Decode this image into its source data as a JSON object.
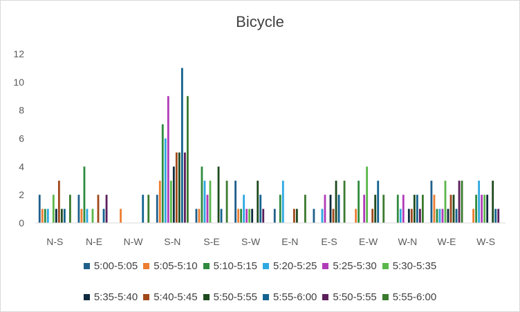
{
  "chart_data": {
    "type": "bar",
    "title": "Bicycle",
    "xlabel": "",
    "ylabel": "",
    "ylim": [
      0,
      12
    ],
    "yticks": [
      0,
      2,
      4,
      6,
      8,
      10,
      12
    ],
    "grid": false,
    "legend_position": "bottom",
    "categories": [
      "N-S",
      "N-E",
      "N-W",
      "S-N",
      "S-E",
      "S-W",
      "E-N",
      "E-S",
      "E-W",
      "W-N",
      "W-E",
      "W-S"
    ],
    "series": [
      {
        "name": "5:00-5:05",
        "color": "#1f5f8b",
        "values": [
          2,
          2,
          0,
          2,
          1,
          3,
          1,
          1,
          0,
          0,
          3,
          0
        ]
      },
      {
        "name": "5:05-5:10",
        "color": "#ed7d31",
        "values": [
          1,
          1,
          1,
          3,
          1,
          1,
          0,
          0,
          1,
          0,
          2,
          1
        ]
      },
      {
        "name": "5:10-5:15",
        "color": "#2e8b3e",
        "values": [
          1,
          4,
          0,
          7,
          4,
          1,
          2,
          0,
          3,
          2,
          1,
          2
        ]
      },
      {
        "name": "5:20-5:25",
        "color": "#2ea8e0",
        "values": [
          1,
          1,
          0,
          6,
          3,
          2,
          3,
          1,
          0,
          1,
          1,
          3
        ]
      },
      {
        "name": "5:25-5:30",
        "color": "#b03bb8",
        "values": [
          0,
          0,
          0,
          9,
          2,
          1,
          0,
          2,
          2,
          2,
          1,
          2
        ]
      },
      {
        "name": "5:30-5:35",
        "color": "#5ab74a",
        "values": [
          2,
          1,
          0,
          3,
          3,
          1,
          0,
          0,
          4,
          0,
          3,
          2
        ]
      },
      {
        "name": "5:35-5:40",
        "color": "#0d2b3e",
        "values": [
          1,
          0,
          0,
          4,
          0,
          1,
          0,
          2,
          0,
          1,
          1,
          2
        ]
      },
      {
        "name": "5:40-5:45",
        "color": "#a0481a",
        "values": [
          3,
          2,
          0,
          5,
          0,
          0,
          1,
          1,
          1,
          1,
          2,
          0
        ]
      },
      {
        "name": "5:50-5:55",
        "color": "#1e4a1e",
        "values": [
          1,
          0,
          0,
          5,
          4,
          3,
          1,
          3,
          2,
          2,
          2,
          3
        ]
      },
      {
        "name": "5:55-6:00",
        "color": "#14638f",
        "values": [
          1,
          1,
          2,
          11,
          1,
          2,
          0,
          2,
          3,
          2,
          1,
          1
        ]
      },
      {
        "name": "5:50-5:55",
        "color": "#5a1f5a",
        "values": [
          0,
          2,
          0,
          5,
          0,
          1,
          0,
          0,
          0,
          1,
          3,
          1
        ]
      },
      {
        "name": "5:55-6:00",
        "color": "#3a7a2e",
        "values": [
          2,
          0,
          2,
          9,
          3,
          0,
          2,
          3,
          2,
          2,
          3,
          0
        ]
      }
    ]
  }
}
